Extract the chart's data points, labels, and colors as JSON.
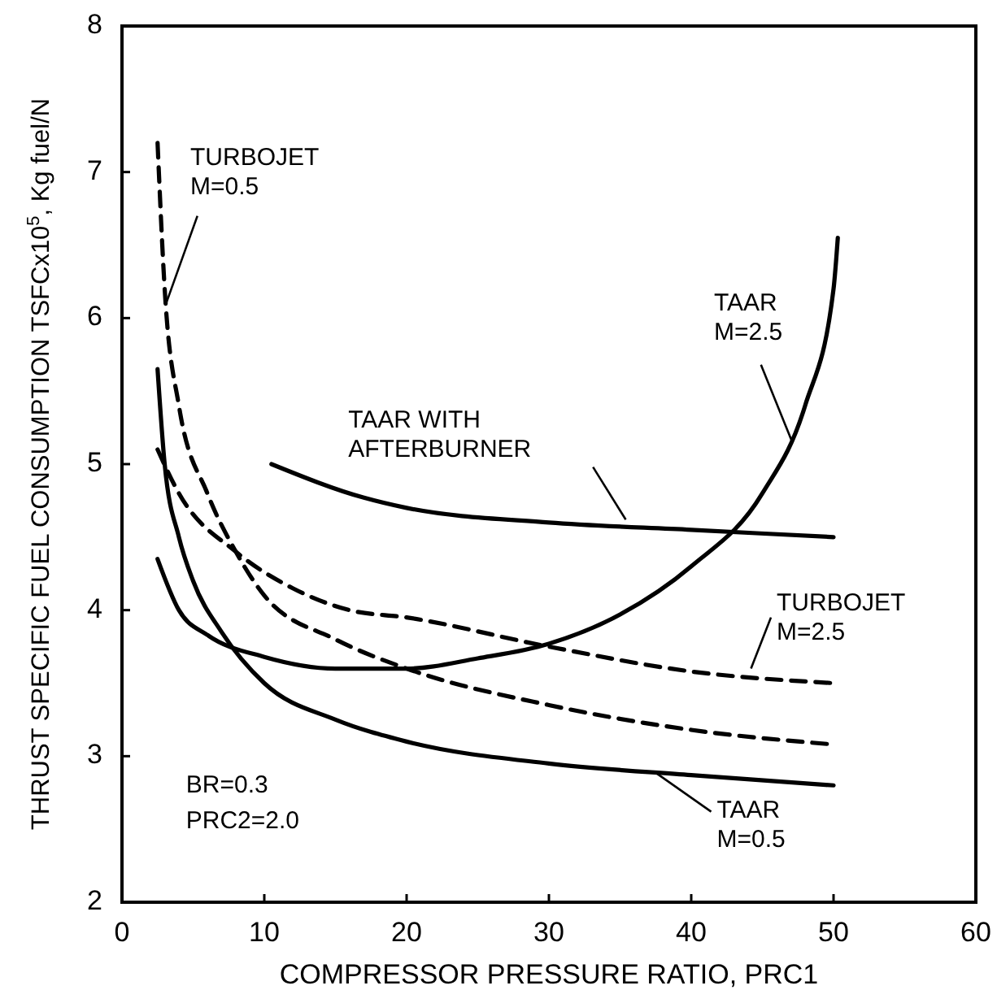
{
  "chart_data": {
    "type": "line",
    "xlabel": "COMPRESSOR PRESSURE RATIO, PRC1",
    "ylabel": "THRUST SPECIFIC FUEL CONSUMPTION TSFCx10$^{5}$, Kg fuel/N",
    "xlim": [
      0,
      60
    ],
    "xticks": [
      0,
      10,
      20,
      30,
      40,
      50,
      60
    ],
    "ylim": [
      2,
      8
    ],
    "yticks": [
      2,
      3,
      4,
      5,
      6,
      7,
      8
    ],
    "grid": false,
    "marker": "none",
    "annotations": [
      "BR=0.3",
      "PRC2=2.0"
    ],
    "series": [
      {
        "name": "TAAR M=0.5",
        "color": "#000000",
        "line_style": "solid",
        "x": [
          2.5,
          3,
          4,
          5,
          7,
          10,
          15,
          20,
          30,
          40,
          50
        ],
        "values": [
          5.65,
          5.0,
          4.5,
          4.2,
          3.85,
          3.5,
          3.25,
          3.1,
          2.95,
          2.87,
          2.8
        ]
      },
      {
        "name": "TAAR M=2.5",
        "color": "#000000",
        "line_style": "solid",
        "x": [
          2.5,
          4,
          6,
          10,
          15,
          20,
          25,
          30,
          35,
          40,
          45,
          48,
          50,
          50.3
        ],
        "values": [
          4.35,
          4.0,
          3.83,
          3.68,
          3.6,
          3.6,
          3.67,
          3.77,
          3.97,
          4.3,
          4.8,
          5.4,
          6.2,
          6.55
        ]
      },
      {
        "name": "TAAR WITH AFTERBURNER",
        "color": "#000000",
        "line_style": "solid",
        "x": [
          10.5,
          17,
          20,
          30,
          40,
          50
        ],
        "values": [
          5.0,
          4.77,
          4.7,
          4.6,
          4.55,
          4.5
        ]
      },
      {
        "name": "TURBOJET M=0.5",
        "color": "#000000",
        "line_style": "dashed",
        "x": [
          2.5,
          3,
          4,
          6,
          8,
          10,
          15,
          20,
          30,
          40,
          50
        ],
        "values": [
          7.2,
          6.2,
          5.4,
          4.8,
          4.4,
          4.1,
          3.8,
          3.6,
          3.35,
          3.18,
          3.08
        ]
      },
      {
        "name": "TURBOJET M=2.5",
        "color": "#000000",
        "line_style": "dashed",
        "x": [
          2.5,
          4,
          8,
          12,
          16,
          20,
          30,
          40,
          50
        ],
        "values": [
          5.1,
          4.8,
          4.4,
          4.15,
          4.0,
          3.95,
          3.75,
          3.58,
          3.5
        ]
      }
    ]
  }
}
